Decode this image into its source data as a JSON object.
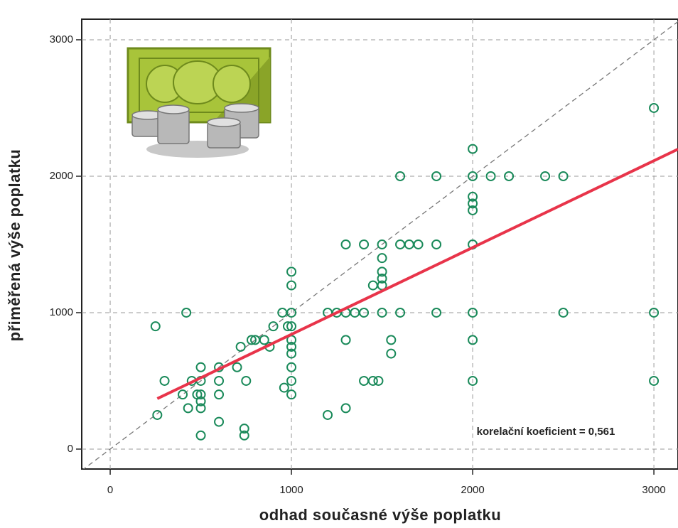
{
  "chart_data": {
    "type": "scatter",
    "x_label": "odhad současné výše poplatku",
    "y_label": "přiměřená výše poplatku",
    "annotation": "korelační koeficient = 0,561",
    "xlim": [
      -157,
      3133
    ],
    "ylim": [
      -146,
      3151
    ],
    "xticks": [
      0,
      1000,
      2000,
      3000
    ],
    "yticks": [
      0,
      1000,
      2000,
      3000
    ],
    "grid": true,
    "series": [
      {
        "color": "#1a8a5a",
        "x": [
          250,
          260,
          300,
          420,
          400,
          430,
          450,
          480,
          500,
          500,
          500,
          500,
          500,
          500,
          600,
          600,
          600,
          600,
          700,
          720,
          750,
          740,
          740,
          780,
          800,
          850,
          880,
          900,
          950,
          960,
          1000,
          1000,
          1000,
          1000,
          1000,
          1000,
          1000,
          1000,
          1000,
          1000,
          980,
          1200,
          1200,
          1250,
          1300,
          1300,
          1300,
          1300,
          1350,
          1400,
          1400,
          1450,
          1480,
          1450,
          1500,
          1500,
          1500,
          1500,
          1500,
          1500,
          1400,
          1550,
          1550,
          1600,
          1600,
          1600,
          1650,
          1700,
          1800,
          1800,
          1800,
          2000,
          2000,
          2000,
          2000,
          2000,
          2000,
          2000,
          2000,
          2000,
          2100,
          2200,
          2400,
          2500,
          2500,
          3000,
          3000,
          3000
        ],
        "values": [
          900,
          250,
          500,
          1000,
          400,
          300,
          500,
          400,
          600,
          500,
          400,
          350,
          300,
          100,
          600,
          500,
          400,
          200,
          600,
          750,
          500,
          150,
          100,
          800,
          800,
          800,
          750,
          900,
          1000,
          450,
          1300,
          1200,
          1000,
          900,
          800,
          750,
          700,
          600,
          500,
          400,
          900,
          1000,
          250,
          1000,
          1500,
          1000,
          800,
          300,
          1000,
          1000,
          500,
          500,
          500,
          1200,
          1500,
          1400,
          1300,
          1250,
          1200,
          1000,
          1500,
          800,
          700,
          2000,
          1500,
          1000,
          1500,
          1500,
          2000,
          1500,
          1000,
          2200,
          2000,
          1850,
          1800,
          1750,
          1500,
          1000,
          800,
          500,
          2000,
          2000,
          2000,
          2000,
          1000,
          2500,
          1000,
          500
        ]
      }
    ],
    "fit_line": {
      "color": "#e8344a",
      "x": [
        260,
        3133
      ],
      "y": [
        370,
        2198
      ]
    },
    "reference_line": {
      "color": "#777777",
      "x": [
        -157,
        3133
      ],
      "y": [
        -157,
        3133
      ]
    }
  }
}
